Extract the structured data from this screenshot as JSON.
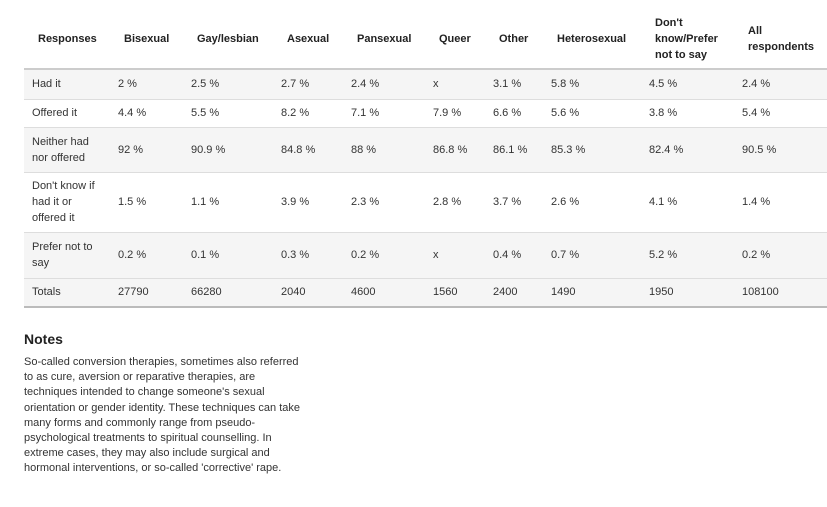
{
  "table": {
    "headers": [
      "Responses",
      "Bisexual",
      "Gay/lesbian",
      "Asexual",
      "Pansexual",
      "Queer",
      "Other",
      "Heterosexual",
      "Don't know/Prefer not to say",
      "All respondents"
    ],
    "rows": [
      [
        "Had it",
        "2 %",
        "2.5 %",
        "2.7 %",
        "2.4 %",
        "x",
        "3.1 %",
        "5.8 %",
        "4.5 %",
        "2.4 %"
      ],
      [
        "Offered it",
        "4.4 %",
        "5.5 %",
        "8.2 %",
        "7.1 %",
        "7.9 %",
        "6.6 %",
        "5.6 %",
        "3.8 %",
        "5.4 %"
      ],
      [
        "Neither had nor offered",
        "92 %",
        "90.9 %",
        "84.8 %",
        "88 %",
        "86.8 %",
        "86.1 %",
        "85.3 %",
        "82.4 %",
        "90.5 %"
      ],
      [
        "Don't know if had it or offered it",
        "1.5 %",
        "1.1 %",
        "3.9 %",
        "2.3 %",
        "2.8 %",
        "3.7 %",
        "2.6 %",
        "4.1 %",
        "1.4 %"
      ],
      [
        "Prefer not to say",
        "0.2 %",
        "0.1 %",
        "0.3 %",
        "0.2 %",
        "x",
        "0.4 %",
        "0.7 %",
        "5.2 %",
        "0.2 %"
      ],
      [
        "Totals",
        "27790",
        "66280",
        "2040",
        "4600",
        "1560",
        "2400",
        "1490",
        "1950",
        "108100"
      ]
    ]
  },
  "notes": {
    "title": "Notes",
    "text": "So-called conversion therapies, sometimes also referred to as cure, aversion or reparative therapies, are techniques intended to change someone's sexual orientation or gender identity. These techniques can take many forms and commonly range from pseudo-psychological treatments to spiritual counselling. In extreme cases, they may also include surgical and hormonal interventions, or so-called 'corrective' rape."
  }
}
